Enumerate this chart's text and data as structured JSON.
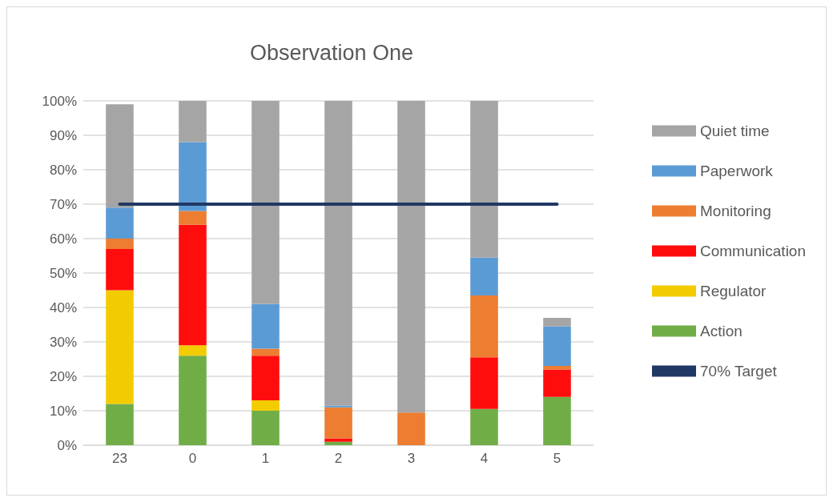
{
  "chart_data": {
    "type": "bar",
    "title": "Observation One",
    "stacked": true,
    "categories": [
      "23",
      "0",
      "1",
      "2",
      "3",
      "4",
      "5"
    ],
    "series": [
      {
        "name": "Action",
        "color": "#70ad47",
        "values": [
          12,
          26,
          10,
          1,
          0,
          10.5,
          14
        ]
      },
      {
        "name": "Regulator",
        "color": "#f2cc00",
        "values": [
          33,
          3,
          3,
          0,
          0,
          0,
          0
        ]
      },
      {
        "name": "Communication",
        "color": "#ff0d0d",
        "values": [
          12,
          35,
          13,
          1,
          0,
          15,
          8
        ]
      },
      {
        "name": "Monitoring",
        "color": "#ed7d31",
        "values": [
          3,
          4,
          2,
          9,
          9.5,
          18,
          1
        ]
      },
      {
        "name": "Paperwork",
        "color": "#5b9bd5",
        "values": [
          9,
          20,
          13,
          0.5,
          0,
          11,
          11.5
        ]
      },
      {
        "name": "Quiet time",
        "color": "#a5a5a5",
        "values": [
          30,
          12,
          59,
          88.5,
          90.5,
          45.5,
          2.5
        ]
      },
      {
        "name": "70% Target",
        "type": "line",
        "color": "#203864",
        "values": [
          70,
          70,
          70,
          70,
          70,
          70,
          70
        ]
      }
    ],
    "ylim": [
      0,
      100
    ],
    "yticks": [
      {
        "value": 0,
        "label": "0%"
      },
      {
        "value": 10,
        "label": "10%"
      },
      {
        "value": 20,
        "label": "20%"
      },
      {
        "value": 30,
        "label": "30%"
      },
      {
        "value": 40,
        "label": "40%"
      },
      {
        "value": 50,
        "label": "50%"
      },
      {
        "value": 60,
        "label": "60%"
      },
      {
        "value": 70,
        "label": "70%"
      },
      {
        "value": 80,
        "label": "80%"
      },
      {
        "value": 90,
        "label": "90%"
      },
      {
        "value": 100,
        "label": "100%"
      }
    ],
    "grid": "y",
    "legend": "right",
    "marker": "none"
  }
}
